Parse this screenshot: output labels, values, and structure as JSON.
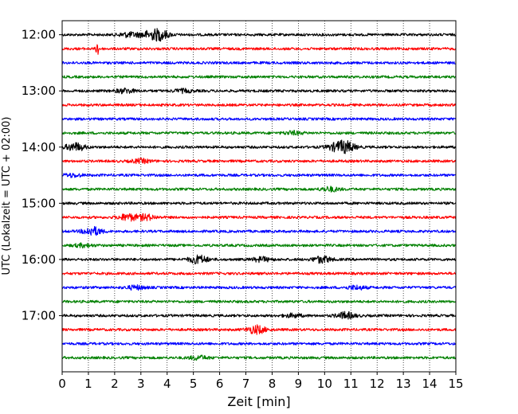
{
  "chart_data": {
    "type": "line",
    "xlabel": "Zeit  [min]",
    "ylabel": "UTC (Lokalzeit = UTC + 02:00)",
    "xlim": [
      0,
      15
    ],
    "x_ticks": [
      "0",
      "1",
      "2",
      "3",
      "4",
      "5",
      "6",
      "7",
      "8",
      "9",
      "10",
      "11",
      "12",
      "13",
      "14",
      "15"
    ],
    "y_ticks": [
      "12:00",
      "13:00",
      "14:00",
      "15:00",
      "16:00",
      "17:00"
    ],
    "y_range_hours": [
      "11:45",
      "18:00"
    ],
    "trace_interval_min": 15,
    "trace_colors": [
      "#000000",
      "#ff0000",
      "#0000ff",
      "#008000"
    ],
    "x_grid": "dotted vertical lines at each minute",
    "traces": [
      {
        "start": "12:00",
        "color": "#000000",
        "events": [
          {
            "min": 3.7,
            "amp": 1.0
          },
          {
            "min": 3.2,
            "amp": 0.5
          },
          {
            "min": 2.5,
            "amp": 0.4
          }
        ]
      },
      {
        "start": "12:15",
        "color": "#ff0000",
        "events": [
          {
            "min": 1.35,
            "amp": 1.0,
            "spike": true
          }
        ]
      },
      {
        "start": "12:30",
        "color": "#0000ff",
        "events": []
      },
      {
        "start": "12:45",
        "color": "#008000",
        "events": []
      },
      {
        "start": "13:00",
        "color": "#000000",
        "events": [
          {
            "min": 2.4,
            "amp": 0.4
          },
          {
            "min": 4.6,
            "amp": 0.3
          }
        ]
      },
      {
        "start": "13:15",
        "color": "#ff0000",
        "events": []
      },
      {
        "start": "13:30",
        "color": "#0000ff",
        "events": []
      },
      {
        "start": "13:45",
        "color": "#008000",
        "events": [
          {
            "min": 8.8,
            "amp": 0.3
          }
        ]
      },
      {
        "start": "14:00",
        "color": "#000000",
        "events": [
          {
            "min": 0.5,
            "amp": 0.75
          },
          {
            "min": 10.8,
            "amp": 1.0
          },
          {
            "min": 10.4,
            "amp": 0.5
          }
        ]
      },
      {
        "start": "14:15",
        "color": "#ff0000",
        "events": [
          {
            "min": 3.0,
            "amp": 0.35
          }
        ]
      },
      {
        "start": "14:30",
        "color": "#0000ff",
        "events": [
          {
            "min": 0.4,
            "amp": 0.3
          }
        ]
      },
      {
        "start": "14:45",
        "color": "#008000",
        "events": [
          {
            "min": 10.2,
            "amp": 0.4
          }
        ]
      },
      {
        "start": "15:00",
        "color": "#000000",
        "events": []
      },
      {
        "start": "15:15",
        "color": "#ff0000",
        "events": [
          {
            "min": 2.5,
            "amp": 0.6
          },
          {
            "min": 3.2,
            "amp": 0.5
          }
        ]
      },
      {
        "start": "15:30",
        "color": "#0000ff",
        "events": [
          {
            "min": 1.15,
            "amp": 0.8
          }
        ]
      },
      {
        "start": "15:45",
        "color": "#008000",
        "events": [
          {
            "min": 0.8,
            "amp": 0.3
          }
        ]
      },
      {
        "start": "16:00",
        "color": "#000000",
        "events": [
          {
            "min": 5.2,
            "amp": 0.75
          },
          {
            "min": 7.6,
            "amp": 0.4
          },
          {
            "min": 9.9,
            "amp": 0.6
          }
        ]
      },
      {
        "start": "16:15",
        "color": "#ff0000",
        "events": []
      },
      {
        "start": "16:30",
        "color": "#0000ff",
        "events": [
          {
            "min": 2.8,
            "amp": 0.35
          },
          {
            "min": 11.2,
            "amp": 0.35
          }
        ]
      },
      {
        "start": "16:45",
        "color": "#008000",
        "events": []
      },
      {
        "start": "17:00",
        "color": "#000000",
        "events": [
          {
            "min": 10.8,
            "amp": 0.6
          },
          {
            "min": 8.8,
            "amp": 0.3
          }
        ]
      },
      {
        "start": "17:15",
        "color": "#ff0000",
        "events": [
          {
            "min": 7.4,
            "amp": 0.75
          }
        ]
      },
      {
        "start": "17:30",
        "color": "#0000ff",
        "events": []
      },
      {
        "start": "17:45",
        "color": "#008000",
        "events": [
          {
            "min": 5.2,
            "amp": 0.35
          }
        ]
      }
    ]
  }
}
